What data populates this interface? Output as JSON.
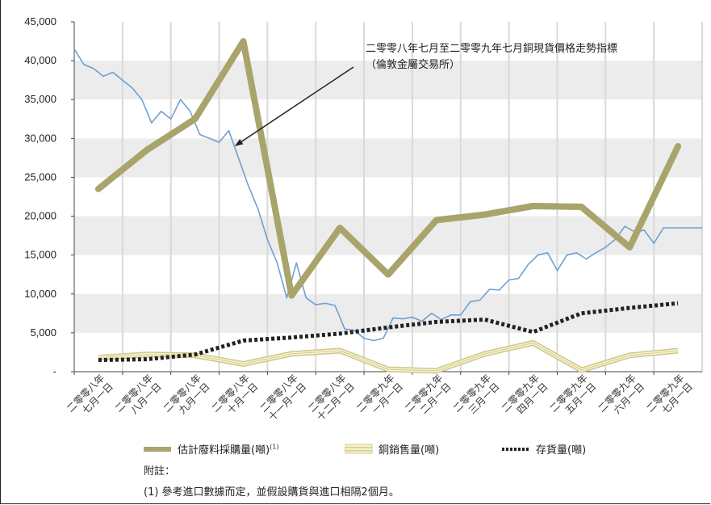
{
  "chart_data": {
    "type": "line",
    "ylim": [
      0,
      45000
    ],
    "yticks": [
      "-",
      "5,000",
      "10,000",
      "15,000",
      "20,000",
      "25,000",
      "30,000",
      "35,000",
      "40,000",
      "45,000"
    ],
    "categories": [
      "二零零八年七月一日",
      "二零零八年八月一日",
      "二零零八年九月一日",
      "二零零八年十月一日",
      "二零零八年十一月一日",
      "二零零八年十二月一日",
      "二零零九年一月一日",
      "二零零九年二月一日",
      "二零零九年三月一日",
      "二零零九年四月一日",
      "二零零九年五月一日",
      "二零零九年六月一日",
      "二零零九年七月一日"
    ],
    "category_lines": [
      [
        "二零零八年",
        "七月一日"
      ],
      [
        "二零零八年",
        "八月一日"
      ],
      [
        "二零零八年",
        "九月一日"
      ],
      [
        "二零零八年",
        "十月一日"
      ],
      [
        "二零零八年",
        "十一月一日"
      ],
      [
        "二零零八年",
        "十二月一日"
      ],
      [
        "二零零九年",
        "一月一日"
      ],
      [
        "二零零九年",
        "二月一日"
      ],
      [
        "二零零九年",
        "三月一日"
      ],
      [
        "二零零九年",
        "四月一日"
      ],
      [
        "二零零九年",
        "五月一日"
      ],
      [
        "二零零九年",
        "六月一日"
      ],
      [
        "二零零九年",
        "七月一日"
      ]
    ],
    "series": [
      {
        "name": "估計廢料採購量(噸)",
        "color": "#a9a46b",
        "x": [
          0.5,
          1.5,
          2.5,
          3.5,
          4.5,
          5.5,
          6.5,
          7.5,
          8.5,
          9.5,
          10.5,
          11.5,
          12.5
        ],
        "values": [
          23500,
          28500,
          32500,
          42500,
          9800,
          18500,
          12500,
          19500,
          20200,
          21300,
          21200,
          16000,
          29000
        ]
      },
      {
        "name": "銅銷售量(噸)",
        "color": "#e8e1a8",
        "x": [
          0.5,
          1.5,
          2.5,
          3.5,
          4.5,
          5.5,
          6.5,
          7.5,
          8.5,
          9.5,
          10.5,
          11.5,
          12.5
        ],
        "values": [
          1800,
          2200,
          2100,
          1000,
          2300,
          2700,
          300,
          100,
          2300,
          3700,
          200,
          2100,
          2700
        ]
      },
      {
        "name": "存貨量(噸)",
        "color": "#222222",
        "x": [
          0.5,
          1.5,
          2.5,
          3.5,
          4.5,
          5.5,
          6.5,
          7.5,
          8.5,
          9.5,
          10.5,
          11.5,
          12.5
        ],
        "values": [
          1500,
          1600,
          2200,
          4000,
          4400,
          4900,
          5700,
          6400,
          6700,
          5100,
          7500,
          8200,
          8800
        ]
      },
      {
        "name": "二零零八年七月至二零零九年七月銅現貨價格走勢指標",
        "color": "#6fa0d0",
        "x": [
          0,
          0.2,
          0.4,
          0.6,
          0.8,
          1.0,
          1.2,
          1.4,
          1.6,
          1.8,
          2.0,
          2.2,
          2.4,
          2.6,
          2.8,
          3.0,
          3.2,
          3.4,
          3.6,
          3.8,
          4.0,
          4.2,
          4.4,
          4.6,
          4.8,
          5.0,
          5.2,
          5.4,
          5.6,
          5.8,
          6.0,
          6.2,
          6.4,
          6.6,
          6.8,
          7.0,
          7.2,
          7.4,
          7.6,
          7.8,
          8.0,
          8.2,
          8.4,
          8.6,
          8.8,
          9.0,
          9.2,
          9.4,
          9.6,
          9.8,
          10.0,
          10.2,
          10.4,
          10.6,
          10.8,
          11.0,
          11.2,
          11.4,
          11.6,
          11.8,
          12.0,
          12.2,
          12.4,
          12.6,
          12.8,
          13.0
        ],
        "values": [
          41500,
          39500,
          39000,
          38000,
          38500,
          37500,
          36500,
          35000,
          32000,
          33500,
          32500,
          35000,
          33500,
          30500,
          30000,
          29500,
          31000,
          27500,
          24000,
          21000,
          17000,
          14000,
          9500,
          14000,
          9500,
          8600,
          8800,
          8500,
          5500,
          5300,
          4300,
          4000,
          4300,
          6900,
          6800,
          7000,
          6500,
          7500,
          6700,
          7300,
          7300,
          9000,
          9200,
          10600,
          10500,
          11800,
          12000,
          13800,
          15000,
          15300,
          13000,
          15000,
          15300,
          14500,
          15300,
          16000,
          17000,
          18700,
          18000,
          18200,
          16500,
          18500,
          18500,
          18500,
          18500,
          18500
        ]
      }
    ],
    "annotation": [
      "二零零八年七月至二零零九年七月銅現貨價格走勢指標",
      "（倫敦金屬交易所）"
    ],
    "annotation_arrow_target": {
      "x": 3.32,
      "y": 29000
    }
  },
  "legend": {
    "scrap_label": "估計廢料採購量(噸)",
    "scrap_sup": "(1)",
    "sales_label": "銅銷售量(噸)",
    "inventory_label": "存貨量(噸)"
  },
  "notes": {
    "title": "附註：",
    "line1": "(1) 參考進口數據而定，並假設購貨與進口相隔2個月。"
  }
}
